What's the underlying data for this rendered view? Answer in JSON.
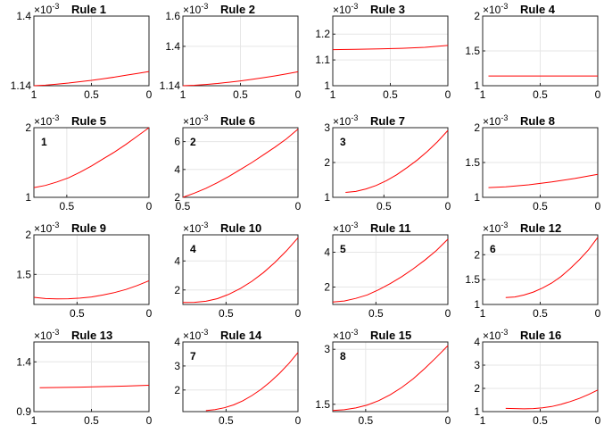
{
  "chart_data": [
    {
      "type": "line",
      "title": "Rule 1",
      "exponent": "×10",
      "exponent_power": "-3",
      "xlim": [
        1,
        0
      ],
      "ylim": [
        1.14,
        1.4
      ],
      "xticks": [
        {
          "v": 1,
          "label": "1"
        },
        {
          "v": 0.5,
          "label": "0.5"
        },
        {
          "v": 0,
          "label": "0"
        }
      ],
      "yticks": [
        {
          "v": 1.14,
          "label": "1.14"
        },
        {
          "v": 1.4,
          "label": "1.4"
        }
      ],
      "grid": true,
      "annotation": "",
      "series": [
        {
          "color": "#ff0000",
          "x": [
            1,
            0.9,
            0.8,
            0.7,
            0.6,
            0.5,
            0.4,
            0.3,
            0.2,
            0.1,
            0
          ],
          "y": [
            1.14,
            1.142,
            1.146,
            1.15,
            1.155,
            1.16,
            1.166,
            1.172,
            1.179,
            1.186,
            1.193
          ]
        }
      ]
    },
    {
      "type": "line",
      "title": "Rule 2",
      "exponent": "×10",
      "exponent_power": "-3",
      "xlim": [
        1,
        0
      ],
      "ylim": [
        1.14,
        1.6
      ],
      "xticks": [
        {
          "v": 1,
          "label": "1"
        },
        {
          "v": 0.5,
          "label": "0.5"
        },
        {
          "v": 0,
          "label": "0"
        }
      ],
      "yticks": [
        {
          "v": 1.14,
          "label": "1.14"
        },
        {
          "v": 1.4,
          "label": "1.4"
        },
        {
          "v": 1.6,
          "label": "1.6"
        }
      ],
      "grid": true,
      "annotation": "",
      "series": [
        {
          "color": "#ff0000",
          "x": [
            1,
            0.9,
            0.8,
            0.7,
            0.6,
            0.5,
            0.4,
            0.3,
            0.2,
            0.1,
            0
          ],
          "y": [
            1.14,
            1.143,
            1.148,
            1.155,
            1.163,
            1.172,
            1.182,
            1.193,
            1.205,
            1.218,
            1.232
          ]
        }
      ]
    },
    {
      "type": "line",
      "title": "Rule 3",
      "exponent": "×10",
      "exponent_power": "-3",
      "xlim": [
        1,
        0
      ],
      "ylim": [
        1,
        1.27
      ],
      "xticks": [
        {
          "v": 1,
          "label": "1"
        },
        {
          "v": 0.5,
          "label": "0.5"
        },
        {
          "v": 0,
          "label": "0"
        }
      ],
      "yticks": [
        {
          "v": 1,
          "label": "1"
        },
        {
          "v": 1.1,
          "label": "1.1"
        },
        {
          "v": 1.2,
          "label": "1.2"
        }
      ],
      "grid": true,
      "annotation": "",
      "series": [
        {
          "color": "#ff0000",
          "x": [
            1,
            0.8,
            0.6,
            0.4,
            0.2,
            0
          ],
          "y": [
            1.14,
            1.141,
            1.143,
            1.145,
            1.149,
            1.156
          ]
        }
      ]
    },
    {
      "type": "line",
      "title": "Rule 4",
      "exponent": "×10",
      "exponent_power": "-3",
      "xlim": [
        1,
        0
      ],
      "ylim": [
        1,
        2
      ],
      "xticks": [
        {
          "v": 1,
          "label": "1"
        },
        {
          "v": 0.5,
          "label": "0.5"
        },
        {
          "v": 0,
          "label": "0"
        }
      ],
      "yticks": [
        {
          "v": 1,
          "label": "1"
        },
        {
          "v": 1.5,
          "label": "1.5"
        },
        {
          "v": 2,
          "label": "2"
        }
      ],
      "grid": true,
      "annotation": "",
      "series": [
        {
          "color": "#ff0000",
          "x": [
            0.95,
            0
          ],
          "y": [
            1.14,
            1.14
          ]
        }
      ]
    },
    {
      "type": "line",
      "title": "Rule 5",
      "exponent": "×10",
      "exponent_power": "-3",
      "xlim": [
        0.7,
        0
      ],
      "ylim": [
        1,
        2
      ],
      "xticks": [
        {
          "v": 0.5,
          "label": "0.5"
        },
        {
          "v": 0,
          "label": "0"
        }
      ],
      "yticks": [
        {
          "v": 1,
          "label": "1"
        },
        {
          "v": 2,
          "label": "2"
        }
      ],
      "grid": true,
      "annotation": "1",
      "series": [
        {
          "color": "#ff0000",
          "x": [
            0.7,
            0.63,
            0.56,
            0.49,
            0.42,
            0.35,
            0.28,
            0.21,
            0.14,
            0.07,
            0
          ],
          "y": [
            1.14,
            1.17,
            1.22,
            1.28,
            1.36,
            1.45,
            1.55,
            1.65,
            1.76,
            1.88,
            2
          ]
        }
      ]
    },
    {
      "type": "line",
      "title": "Rule 6",
      "exponent": "×10",
      "exponent_power": "-3",
      "xlim": [
        0.5,
        0
      ],
      "ylim": [
        2,
        7
      ],
      "xticks": [
        {
          "v": 0.5,
          "label": "0.5"
        },
        {
          "v": 0,
          "label": "0"
        }
      ],
      "yticks": [
        {
          "v": 2,
          "label": "2"
        },
        {
          "v": 4,
          "label": "4"
        },
        {
          "v": 6,
          "label": "6"
        }
      ],
      "grid": true,
      "annotation": "2",
      "series": [
        {
          "color": "#ff0000",
          "x": [
            0.5,
            0.45,
            0.4,
            0.35,
            0.3,
            0.25,
            0.2,
            0.15,
            0.1,
            0.05,
            0
          ],
          "y": [
            2,
            2.3,
            2.65,
            3.05,
            3.5,
            4,
            4.5,
            5.05,
            5.6,
            6.2,
            6.9
          ]
        }
      ]
    },
    {
      "type": "line",
      "title": "Rule 7",
      "exponent": "×10",
      "exponent_power": "-3",
      "xlim": [
        0.9,
        0
      ],
      "ylim": [
        1,
        3
      ],
      "xticks": [
        {
          "v": 0.5,
          "label": "0.5"
        },
        {
          "v": 0,
          "label": "0"
        }
      ],
      "yticks": [
        {
          "v": 1,
          "label": "1"
        },
        {
          "v": 2,
          "label": "2"
        },
        {
          "v": 3,
          "label": "3"
        }
      ],
      "grid": true,
      "annotation": "3",
      "series": [
        {
          "color": "#ff0000",
          "x": [
            0.8,
            0.72,
            0.64,
            0.56,
            0.48,
            0.4,
            0.32,
            0.24,
            0.16,
            0.08,
            0
          ],
          "y": [
            1.14,
            1.17,
            1.24,
            1.34,
            1.48,
            1.65,
            1.85,
            2.07,
            2.32,
            2.6,
            2.92
          ]
        }
      ]
    },
    {
      "type": "line",
      "title": "Rule 8",
      "exponent": "×10",
      "exponent_power": "-3",
      "xlim": [
        1,
        0
      ],
      "ylim": [
        1,
        2
      ],
      "xticks": [
        {
          "v": 0.5,
          "label": "0.5"
        },
        {
          "v": 0,
          "label": "0"
        }
      ],
      "yticks": [
        {
          "v": 1,
          "label": "1"
        },
        {
          "v": 1.5,
          "label": "1.5"
        },
        {
          "v": 2,
          "label": "2"
        }
      ],
      "grid": true,
      "annotation": "",
      "series": [
        {
          "color": "#ff0000",
          "x": [
            0.95,
            0.8,
            0.6,
            0.4,
            0.2,
            0
          ],
          "y": [
            1.14,
            1.15,
            1.18,
            1.22,
            1.27,
            1.33
          ]
        }
      ]
    },
    {
      "type": "line",
      "title": "Rule 9",
      "exponent": "×10",
      "exponent_power": "-3",
      "xlim": [
        0.8,
        0
      ],
      "ylim": [
        1.12,
        2
      ],
      "xticks": [
        {
          "v": 0.5,
          "label": "0.5"
        },
        {
          "v": 0,
          "label": "0"
        }
      ],
      "yticks": [
        {
          "v": 1.5,
          "label": "1.5"
        },
        {
          "v": 2,
          "label": "2"
        }
      ],
      "grid": true,
      "annotation": "",
      "series": [
        {
          "color": "#ff0000",
          "x": [
            0.8,
            0.72,
            0.64,
            0.56,
            0.48,
            0.4,
            0.32,
            0.24,
            0.16,
            0.08,
            0
          ],
          "y": [
            1.21,
            1.195,
            1.19,
            1.192,
            1.2,
            1.215,
            1.24,
            1.27,
            1.31,
            1.36,
            1.42
          ]
        }
      ]
    },
    {
      "type": "line",
      "title": "Rule 10",
      "exponent": "×10",
      "exponent_power": "-3",
      "xlim": [
        0.8,
        0
      ],
      "ylim": [
        1,
        5.8
      ],
      "xticks": [
        {
          "v": 0.5,
          "label": "0.5"
        },
        {
          "v": 0,
          "label": "0"
        }
      ],
      "yticks": [
        {
          "v": 2,
          "label": "2"
        },
        {
          "v": 4,
          "label": "4"
        }
      ],
      "grid": true,
      "annotation": "4",
      "series": [
        {
          "color": "#ff0000",
          "x": [
            0.8,
            0.72,
            0.64,
            0.56,
            0.48,
            0.4,
            0.32,
            0.24,
            0.16,
            0.08,
            0
          ],
          "y": [
            1.14,
            1.15,
            1.22,
            1.4,
            1.7,
            2.1,
            2.6,
            3.2,
            3.9,
            4.7,
            5.6
          ]
        }
      ]
    },
    {
      "type": "line",
      "title": "Rule 11",
      "exponent": "×10",
      "exponent_power": "-3",
      "xlim": [
        0.8,
        0
      ],
      "ylim": [
        1,
        5
      ],
      "xticks": [
        {
          "v": 0.5,
          "label": "0.5"
        },
        {
          "v": 0,
          "label": "0"
        }
      ],
      "yticks": [
        {
          "v": 2,
          "label": "2"
        },
        {
          "v": 4,
          "label": "4"
        }
      ],
      "grid": true,
      "annotation": "5",
      "series": [
        {
          "color": "#ff0000",
          "x": [
            0.8,
            0.72,
            0.64,
            0.56,
            0.48,
            0.4,
            0.32,
            0.24,
            0.16,
            0.08,
            0
          ],
          "y": [
            1.14,
            1.2,
            1.35,
            1.55,
            1.85,
            2.2,
            2.6,
            3.05,
            3.55,
            4.1,
            4.75
          ]
        }
      ]
    },
    {
      "type": "line",
      "title": "Rule 12",
      "exponent": "×10",
      "exponent_power": "-3",
      "xlim": [
        1,
        0
      ],
      "ylim": [
        1,
        2.4
      ],
      "xticks": [
        {
          "v": 1,
          "label": "1"
        },
        {
          "v": 0.5,
          "label": "0.5"
        },
        {
          "v": 0,
          "label": "0"
        }
      ],
      "yticks": [
        {
          "v": 1,
          "label": "1"
        },
        {
          "v": 1.5,
          "label": "1.5"
        },
        {
          "v": 2,
          "label": "2"
        }
      ],
      "grid": true,
      "annotation": "6",
      "series": [
        {
          "color": "#ff0000",
          "x": [
            0.8,
            0.72,
            0.64,
            0.56,
            0.48,
            0.4,
            0.32,
            0.24,
            0.16,
            0.08,
            0
          ],
          "y": [
            1.14,
            1.15,
            1.19,
            1.25,
            1.33,
            1.43,
            1.56,
            1.72,
            1.9,
            2.1,
            2.35
          ]
        }
      ]
    },
    {
      "type": "line",
      "title": "Rule 13",
      "exponent": "×10",
      "exponent_power": "-3",
      "xlim": [
        1,
        0
      ],
      "ylim": [
        0.9,
        1.6
      ],
      "xticks": [
        {
          "v": 1,
          "label": "1"
        },
        {
          "v": 0.5,
          "label": "0.5"
        },
        {
          "v": 0,
          "label": "0"
        }
      ],
      "yticks": [
        {
          "v": 0.9,
          "label": "0.9"
        },
        {
          "v": 1.4,
          "label": "1.4"
        }
      ],
      "grid": true,
      "annotation": "",
      "series": [
        {
          "color": "#ff0000",
          "x": [
            0.95,
            0.8,
            0.6,
            0.4,
            0.2,
            0
          ],
          "y": [
            1.14,
            1.142,
            1.146,
            1.151,
            1.157,
            1.165
          ]
        }
      ]
    },
    {
      "type": "line",
      "title": "Rule 14",
      "exponent": "×10",
      "exponent_power": "-3",
      "xlim": [
        0.8,
        0
      ],
      "ylim": [
        1.1,
        4
      ],
      "xticks": [
        {
          "v": 0.5,
          "label": "0.5"
        },
        {
          "v": 0,
          "label": "0"
        }
      ],
      "yticks": [
        {
          "v": 2,
          "label": "2"
        },
        {
          "v": 3,
          "label": "3"
        },
        {
          "v": 4,
          "label": "4"
        }
      ],
      "grid": true,
      "annotation": "7",
      "series": [
        {
          "color": "#ff0000",
          "x": [
            0.64,
            0.576,
            0.512,
            0.448,
            0.384,
            0.32,
            0.256,
            0.192,
            0.128,
            0.064,
            0
          ],
          "y": [
            1.14,
            1.18,
            1.26,
            1.38,
            1.55,
            1.77,
            2.03,
            2.34,
            2.7,
            3.1,
            3.56
          ]
        }
      ]
    },
    {
      "type": "line",
      "title": "Rule 15",
      "exponent": "×10",
      "exponent_power": "-3",
      "xlim": [
        0.7,
        0
      ],
      "ylim": [
        1.3,
        3.2
      ],
      "xticks": [
        {
          "v": 0.5,
          "label": "0.5"
        },
        {
          "v": 0,
          "label": "0"
        }
      ],
      "yticks": [
        {
          "v": 1.5,
          "label": "1.5"
        },
        {
          "v": 3,
          "label": "3"
        }
      ],
      "grid": true,
      "annotation": "8",
      "series": [
        {
          "color": "#ff0000",
          "x": [
            0.7,
            0.63,
            0.56,
            0.49,
            0.42,
            0.35,
            0.28,
            0.21,
            0.14,
            0.07,
            0
          ],
          "y": [
            1.33,
            1.35,
            1.4,
            1.48,
            1.6,
            1.76,
            1.96,
            2.2,
            2.48,
            2.78,
            3.1
          ]
        }
      ]
    },
    {
      "type": "line",
      "title": "Rule 16",
      "exponent": "×10",
      "exponent_power": "-3",
      "xlim": [
        1,
        0
      ],
      "ylim": [
        1,
        4
      ],
      "xticks": [
        {
          "v": 1,
          "label": "1"
        },
        {
          "v": 0.5,
          "label": "0.5"
        },
        {
          "v": 0,
          "label": "0"
        }
      ],
      "yticks": [
        {
          "v": 1,
          "label": "1"
        },
        {
          "v": 2,
          "label": "2"
        },
        {
          "v": 3,
          "label": "3"
        },
        {
          "v": 4,
          "label": "4"
        }
      ],
      "grid": true,
      "annotation": "",
      "series": [
        {
          "color": "#ff0000",
          "x": [
            0.8,
            0.72,
            0.64,
            0.56,
            0.48,
            0.4,
            0.32,
            0.24,
            0.16,
            0.08,
            0
          ],
          "y": [
            1.14,
            1.13,
            1.12,
            1.13,
            1.16,
            1.22,
            1.31,
            1.43,
            1.57,
            1.74,
            1.93
          ]
        }
      ]
    }
  ]
}
